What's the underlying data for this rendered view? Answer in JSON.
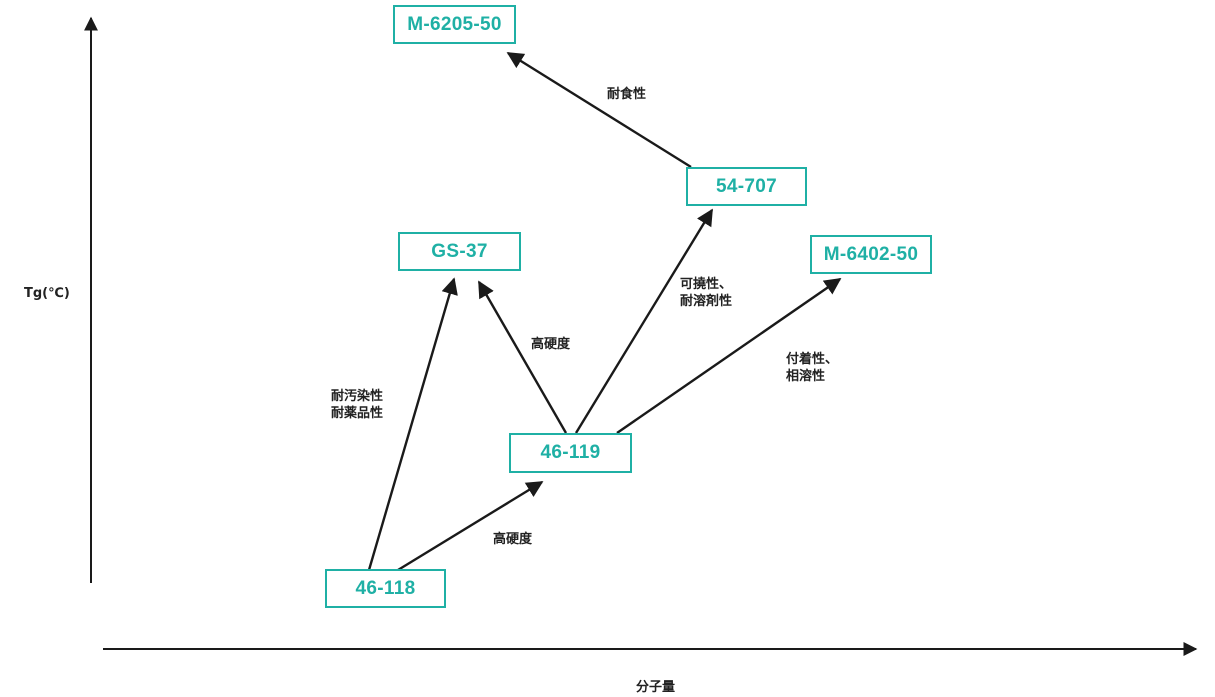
{
  "axes": {
    "y_label": "Tg(℃)",
    "x_label": "分子量"
  },
  "nodes": {
    "n46_118": "46-118",
    "n46_119": "46-119",
    "gs37": "GS-37",
    "n54_707": "54-707",
    "m6205": "M-6205-50",
    "m6402": "M-6402-50"
  },
  "edge_labels": {
    "to_46_119": "高硬度",
    "to_gs37_from_118": [
      "耐汚染性",
      "耐薬品性"
    ],
    "to_gs37_from_119": "高硬度",
    "to_54_707": [
      "可撓性、",
      "耐溶剤性"
    ],
    "to_m6402": [
      "付着性、",
      "相溶性"
    ],
    "to_m6205": "耐食性"
  },
  "colors": {
    "node_border": "#1fb0a5",
    "node_text": "#1fb0a5",
    "line": "#1a1a1a"
  }
}
